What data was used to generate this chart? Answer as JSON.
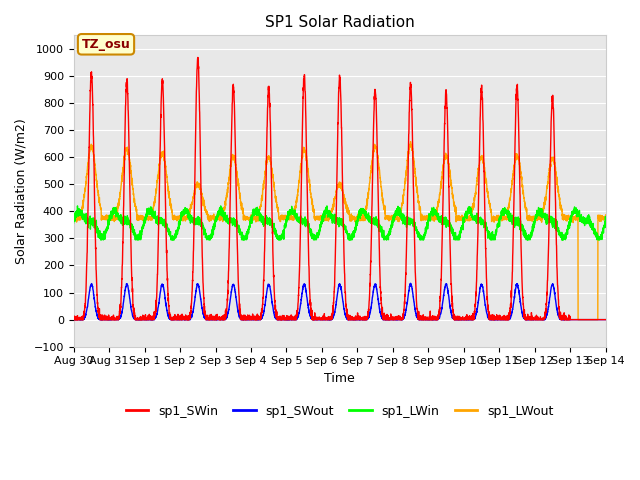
{
  "title": "SP1 Solar Radiation",
  "ylabel": "Solar Radiation (W/m2)",
  "xlabel": "Time",
  "ylim": [
    -100,
    1050
  ],
  "n_points": 4320,
  "tz_label": "TZ_osu",
  "legend_labels": [
    "sp1_SWin",
    "sp1_SWout",
    "sp1_LWin",
    "sp1_LWout"
  ],
  "line_colors": [
    "red",
    "blue",
    "lime",
    "orange"
  ],
  "bg_color": "#e8e8e8",
  "x_ticks_labels": [
    "Aug 30",
    "Aug 31",
    "Sep 1",
    "Sep 2",
    "Sep 3",
    "Sep 4",
    "Sep 5",
    "Sep 6",
    "Sep 7",
    "Sep 8",
    "Sep 9",
    "Sep 10",
    "Sep 11",
    "Sep 12",
    "Sep 13",
    "Sep 14"
  ],
  "title_fontsize": 11,
  "axis_label_fontsize": 9,
  "tick_fontsize": 8,
  "legend_fontsize": 9,
  "sw_in_peaks": [
    910,
    882,
    887,
    960,
    862,
    858,
    900,
    895,
    850,
    862,
    840,
    850,
    860,
    825
  ],
  "lw_out_peaks": [
    640,
    630,
    615,
    500,
    600,
    600,
    625,
    500,
    640,
    645,
    605,
    600,
    605,
    595
  ],
  "lw_out_baseline": 375,
  "lw_in_base": 355,
  "sw_out_peak": 130
}
